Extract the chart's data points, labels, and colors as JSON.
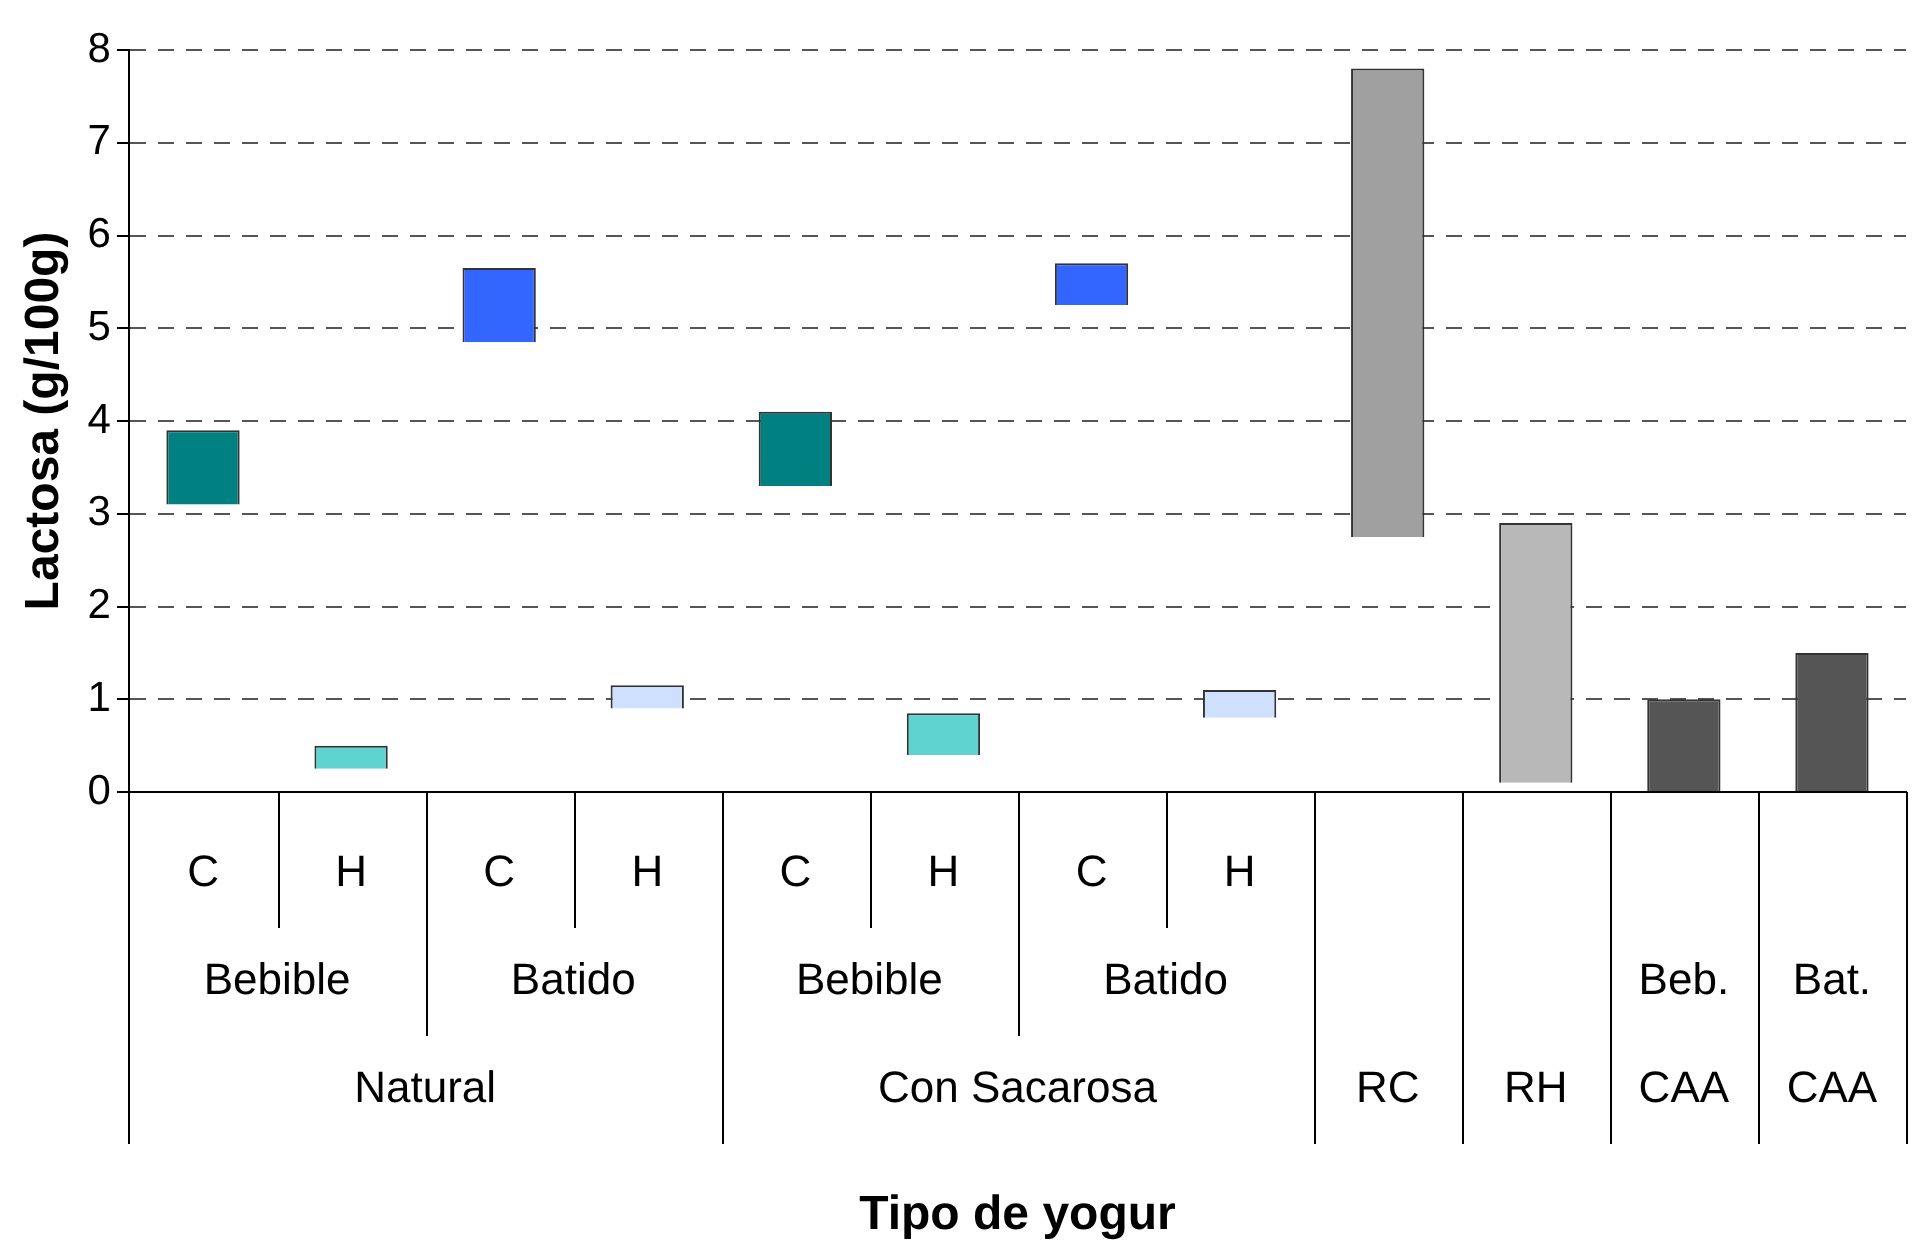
{
  "chart_data": {
    "type": "bar",
    "ylabel": "Lactosa (g/100g)",
    "categories": [
      "C",
      "H",
      "C",
      "H",
      "C",
      "H",
      "C",
      "H",
      null,
      null,
      null,
      null
    ],
    "values": [
      0.8,
      0.25,
      0.8,
      0.25,
      0.8,
      0.45,
      0.45,
      0.3,
      5.05,
      2.8,
      1.0,
      1.5
    ],
    "base": [
      3.1,
      0.25,
      4.85,
      0.9,
      3.3,
      0.4,
      5.25,
      0.8,
      2.75,
      0.1,
      0,
      0
    ],
    "colors": [
      "#008080",
      "#5fd3cf",
      "#3366ff",
      "#cfe0ff",
      "#008080",
      "#5fd3cf",
      "#3366ff",
      "#cfe0ff",
      "#a0a0a0",
      "#b8b8b8",
      "#555555",
      "#555555"
    ],
    "annotations": [
      "Bebible",
      "Batido",
      "Bebible",
      "Batido",
      "Beb.",
      "Bat.",
      "Natural",
      "Con Sacarosa",
      "RC",
      "RH",
      "CAA",
      "CAA",
      "Tipo de yogur"
    ],
    "ylim": [
      0,
      8
    ],
    "yticks": [
      0,
      1,
      2,
      3,
      4,
      5,
      6,
      7,
      8
    ],
    "grid": "y",
    "legend": false
  }
}
